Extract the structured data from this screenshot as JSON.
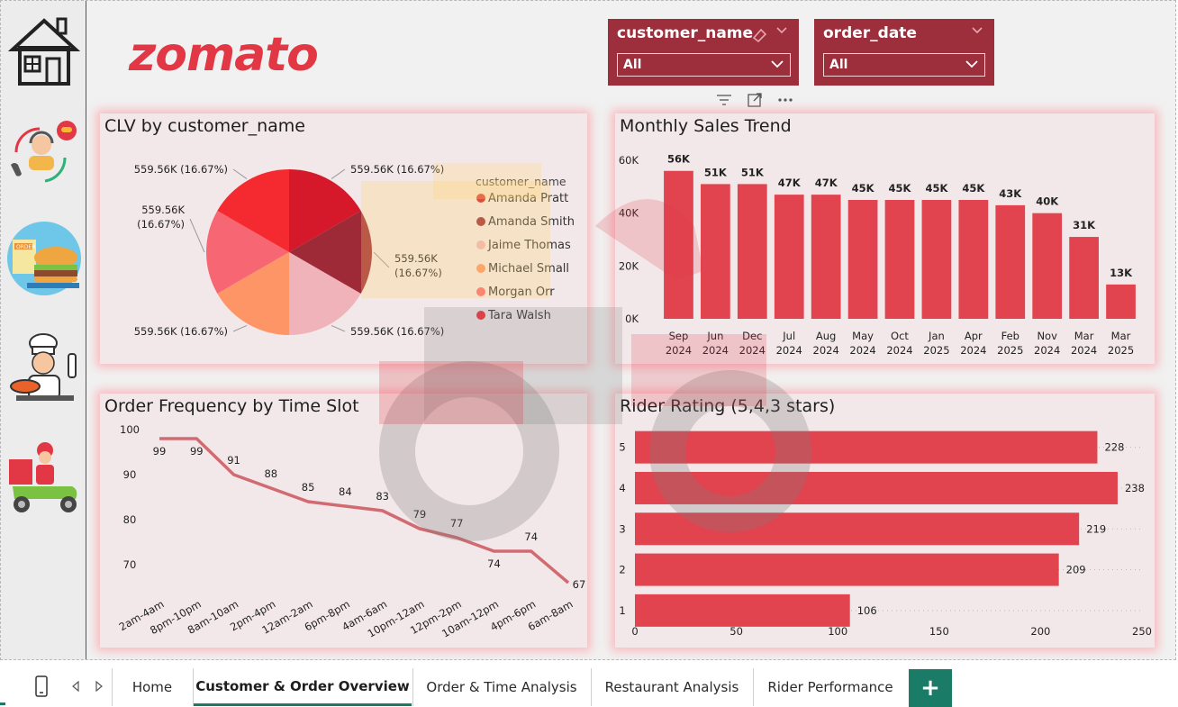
{
  "brand": {
    "logo_text": "zomato",
    "accent": "#e23744",
    "slicer_bg": "#9d2f3c",
    "tab_accent": "#1c7a63"
  },
  "sidebar": {
    "items": [
      {
        "name": "home-icon"
      },
      {
        "name": "customer-support-icon"
      },
      {
        "name": "food-order-icon"
      },
      {
        "name": "chef-icon"
      },
      {
        "name": "delivery-rider-icon"
      }
    ]
  },
  "slicers": [
    {
      "title": "customer_name",
      "value": "All"
    },
    {
      "title": "order_date",
      "value": "All"
    }
  ],
  "toolbar": {
    "icons": [
      "filter-icon",
      "focus-mode-icon",
      "more-options-icon"
    ]
  },
  "panels": {
    "clv": {
      "title": "CLV by customer_name"
    },
    "monthly": {
      "title": "Monthly Sales Trend"
    },
    "frequency": {
      "title": "Order Frequency by Time Slot"
    },
    "rider": {
      "title": "Rider Rating (5,4,3 stars)"
    }
  },
  "chart_data": [
    {
      "type": "pie",
      "title": "CLV by customer_name",
      "legend_title": "customer_name",
      "legend_placement": "right",
      "slices": [
        {
          "name": "Amanda Pratt",
          "label": "559.56K (16.67%)",
          "value": 559.56,
          "color": "#d5192a"
        },
        {
          "name": "Amanda Smith",
          "label": "559.56K (16.67%)",
          "value": 559.56,
          "color": "#9e2a37"
        },
        {
          "name": "Jaime Thomas",
          "label": "559.56K (16.67%)",
          "value": 559.56,
          "color": "#f0b3b9"
        },
        {
          "name": "Michael Small",
          "label": "559.56K (16.67%)",
          "value": 559.56,
          "color": "#fe9566"
        },
        {
          "name": "Morgan Orr",
          "label": "559.56K (16.67%)",
          "value": 559.56,
          "color": "#f76773"
        },
        {
          "name": "Tara Walsh",
          "label": "559.56K (16.67%)",
          "value": 559.56,
          "color": "#f52a30"
        }
      ]
    },
    {
      "type": "bar",
      "title": "Monthly Sales Trend",
      "categories": [
        "Sep 2024",
        "Jun 2024",
        "Dec 2024",
        "Jul 2024",
        "Aug 2024",
        "May 2024",
        "Oct 2024",
        "Jan 2025",
        "Apr 2024",
        "Feb 2025",
        "Nov 2024",
        "Mar 2024",
        "Mar 2025"
      ],
      "values": [
        56,
        51,
        51,
        47,
        47,
        45,
        45,
        45,
        45,
        43,
        40,
        31,
        13
      ],
      "data_labels": [
        "56K",
        "51K",
        "51K",
        "47K",
        "47K",
        "45K",
        "45K",
        "45K",
        "45K",
        "43K",
        "40K",
        "31K",
        "13K"
      ],
      "yticks": [
        "0K",
        "20K",
        "40K",
        "60K"
      ],
      "ylim": [
        0,
        60
      ],
      "color": "#e2444f"
    },
    {
      "type": "line",
      "title": "Order Frequency by Time Slot",
      "categories": [
        "2am-4am",
        "8pm-10pm",
        "8am-10am",
        "2pm-4pm",
        "12am-2am",
        "6pm-8pm",
        "4am-6am",
        "10pm-12am",
        "12pm-2pm",
        "10am-12pm",
        "4pm-6pm",
        "6am-8am"
      ],
      "values": [
        99,
        99,
        91,
        88,
        85,
        84,
        83,
        79,
        77,
        74,
        74,
        67
      ],
      "yticks": [
        "100",
        "90",
        "80",
        "70"
      ],
      "ylim": [
        67,
        100
      ],
      "color": "#d26a72"
    },
    {
      "type": "bar",
      "orientation": "horizontal",
      "title": "Rider Rating (5,4,3 stars)",
      "categories": [
        "5",
        "4",
        "3",
        "2",
        "1"
      ],
      "values": [
        228,
        238,
        219,
        209,
        106
      ],
      "data_labels": [
        "228",
        "238",
        "219",
        "209",
        "106"
      ],
      "xticks": [
        "0",
        "50",
        "100",
        "150",
        "200",
        "250"
      ],
      "xlim": [
        0,
        250
      ],
      "color": "#e2444f"
    }
  ],
  "tabs": {
    "items": [
      {
        "label": "Home",
        "active": false
      },
      {
        "label": "Customer & Order Overview",
        "active": true
      },
      {
        "label": "Order & Time Analysis",
        "active": false
      },
      {
        "label": "Restaurant Analysis",
        "active": false
      },
      {
        "label": "Rider Performance",
        "active": false
      }
    ],
    "add_label": "+"
  }
}
